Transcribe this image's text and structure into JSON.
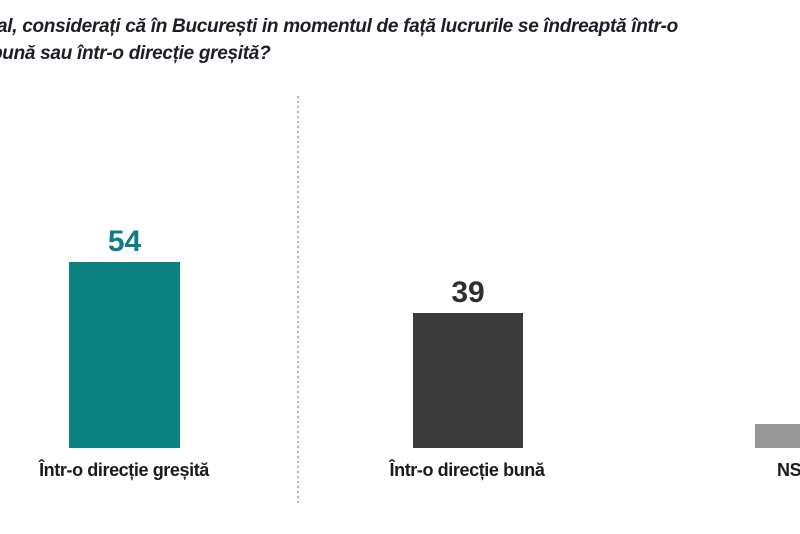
{
  "title": {
    "line1": "al, considerați că în București in momentul de față lucrurile se îndreaptă într-o",
    "line2": "bună sau într-o direcție greșită?"
  },
  "chart_data": {
    "type": "bar",
    "title": "al, considerați că în București in momentul de față lucrurile se îndreaptă într-o bună sau într-o direcție greșită?",
    "categories": [
      "Într-o direcție greșită",
      "Într-o direcție bună",
      "NS"
    ],
    "values": [
      54,
      39,
      7
    ],
    "value_labels": [
      "54",
      "39",
      ""
    ],
    "bar_colors": [
      "#0b8180",
      "#3b3b3b",
      "#989898"
    ],
    "value_label_colors": [
      "#0e7d8b",
      "#2f2f2f",
      "#2f2f2f"
    ],
    "xlabel": "",
    "ylabel": "",
    "ylim": [
      0,
      60
    ],
    "grid": false,
    "legend": false,
    "divider_color": "#b5b5b5",
    "title_color": "#1d1d28",
    "category_label_color": "#1a1a1a"
  }
}
